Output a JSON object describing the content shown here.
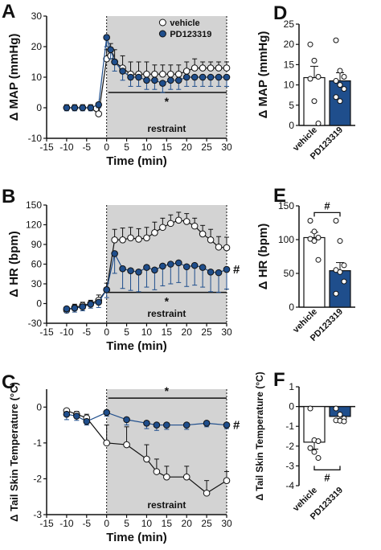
{
  "colors": {
    "vehicle_fill": "#ffffff",
    "pd_fill": "#1f4e8c",
    "axis": "#111111",
    "shade": "#d3d3d3",
    "edge": "#111111"
  },
  "chart_data": [
    {
      "panel": "A",
      "type": "line",
      "xlabel": "Time (min)",
      "ylabel": "Δ MAP (mmHg)",
      "xlim": [
        -15,
        30
      ],
      "ylim": [
        -10,
        30
      ],
      "xticks": [
        -15,
        -10,
        -5,
        0,
        5,
        10,
        15,
        20,
        25,
        30
      ],
      "yticks": [
        -10,
        0,
        10,
        20,
        30
      ],
      "shaded_region": [
        0,
        30
      ],
      "shaded_label": "restraint",
      "significance": {
        "symbol": "*",
        "y": 5
      },
      "end_marker": "",
      "legend": {
        "position": "top-right"
      },
      "series": [
        {
          "name": "vehicle",
          "marker": "open",
          "x": [
            -10,
            -8,
            -6,
            -4,
            -2,
            0,
            1,
            2,
            4,
            6,
            8,
            10,
            12,
            14,
            16,
            18,
            20,
            22,
            24,
            26,
            28,
            30
          ],
          "y": [
            0,
            0,
            0,
            0,
            -2,
            16,
            17,
            15,
            13,
            11,
            11,
            11,
            11,
            11,
            11,
            11,
            12,
            13,
            13,
            13,
            13,
            13
          ],
          "err": [
            1,
            1,
            1,
            1,
            2,
            3,
            4,
            4,
            4,
            4,
            4,
            4,
            3,
            3,
            3,
            3,
            3,
            3,
            2,
            2,
            2,
            2
          ]
        },
        {
          "name": "PD123319",
          "marker": "filled",
          "x": [
            -10,
            -8,
            -6,
            -4,
            -2,
            0,
            1,
            2,
            4,
            6,
            8,
            10,
            12,
            14,
            16,
            18,
            20,
            22,
            24,
            26,
            28,
            30
          ],
          "y": [
            0,
            0,
            0,
            0,
            1,
            23,
            19,
            15,
            12,
            10,
            10,
            9,
            9,
            8,
            9,
            9,
            10,
            10,
            10,
            10,
            10,
            10
          ],
          "err": [
            1,
            1,
            1,
            1,
            1,
            3,
            3,
            3,
            3,
            3,
            3,
            3,
            3,
            3,
            3,
            3,
            3,
            3,
            3,
            3,
            3,
            3
          ]
        }
      ]
    },
    {
      "panel": "B",
      "type": "line",
      "xlabel": "Time (min)",
      "ylabel": "Δ HR (bpm)",
      "xlim": [
        -15,
        30
      ],
      "ylim": [
        -30,
        150
      ],
      "xticks": [
        -15,
        -10,
        -5,
        0,
        5,
        10,
        15,
        20,
        25,
        30
      ],
      "yticks": [
        -30,
        0,
        30,
        60,
        90,
        120,
        150
      ],
      "yticklabels": [
        "-30",
        "0",
        "30",
        "60",
        "90",
        "120",
        "150"
      ],
      "shaded_region": [
        0,
        30
      ],
      "shaded_label": "restraint",
      "significance": {
        "symbol": "*",
        "y": 17
      },
      "end_marker": "#",
      "series": [
        {
          "name": "vehicle",
          "marker": "open",
          "x": [
            -10,
            -8,
            -6,
            -4,
            -2,
            0,
            2,
            4,
            6,
            8,
            10,
            12,
            14,
            16,
            18,
            20,
            22,
            24,
            26,
            28,
            30
          ],
          "y": [
            -10,
            -6,
            -3,
            0,
            5,
            21,
            97,
            97,
            100,
            98,
            100,
            108,
            116,
            122,
            127,
            125,
            118,
            106,
            97,
            86,
            85
          ],
          "err": [
            5,
            5,
            5,
            5,
            8,
            10,
            16,
            18,
            16,
            16,
            16,
            16,
            14,
            13,
            12,
            12,
            12,
            13,
            16,
            16,
            16
          ]
        },
        {
          "name": "PD123319",
          "marker": "filled",
          "x": [
            -10,
            -8,
            -6,
            -4,
            -2,
            0,
            2,
            4,
            6,
            8,
            10,
            12,
            14,
            16,
            18,
            20,
            22,
            24,
            26,
            28,
            30
          ],
          "y": [
            -8,
            -7,
            -5,
            -1,
            2,
            21,
            76,
            53,
            50,
            48,
            55,
            51,
            57,
            60,
            62,
            56,
            58,
            55,
            48,
            47,
            52
          ],
          "err": [
            6,
            6,
            6,
            6,
            8,
            12,
            30,
            30,
            30,
            30,
            30,
            30,
            30,
            30,
            30,
            30,
            30,
            30,
            30,
            30,
            30
          ]
        }
      ]
    },
    {
      "panel": "C",
      "type": "line",
      "xlabel": "Time (min)",
      "ylabel": "Δ Tail Skin Temperature (°C)",
      "xlim": [
        -15,
        30
      ],
      "ylim": [
        -3,
        0.5
      ],
      "xticks": [
        -15,
        -10,
        -5,
        0,
        5,
        10,
        15,
        20,
        25,
        30
      ],
      "yticks": [
        -3,
        -2,
        -1,
        0
      ],
      "shaded_region": [
        0,
        30
      ],
      "shaded_label": "restraint",
      "significance": {
        "symbol": "*",
        "y": 0.25
      },
      "end_marker": "#",
      "series": [
        {
          "name": "vehicle",
          "marker": "open",
          "x": [
            -10,
            -7.5,
            -5,
            0,
            5,
            10,
            12.5,
            15,
            20,
            25,
            30
          ],
          "y": [
            -0.1,
            -0.2,
            -0.3,
            -1.0,
            -1.05,
            -1.45,
            -1.8,
            -1.95,
            -1.95,
            -2.4,
            -2.05
          ],
          "err": [
            0.05,
            0.08,
            0.1,
            0.5,
            0.5,
            0.4,
            0.35,
            0.3,
            0.3,
            0.35,
            0.25
          ]
        },
        {
          "name": "PD123319",
          "marker": "filled",
          "x": [
            -10,
            -7.5,
            -5,
            0,
            5,
            10,
            12.5,
            15,
            20,
            25,
            30
          ],
          "y": [
            -0.2,
            -0.25,
            -0.4,
            -0.15,
            -0.35,
            -0.45,
            -0.5,
            -0.5,
            -0.5,
            -0.45,
            -0.5
          ],
          "err": [
            0.15,
            0.12,
            0.1,
            0.1,
            0.15,
            0.15,
            0.15,
            0.12,
            0.12,
            0.1,
            0.1
          ]
        }
      ]
    },
    {
      "panel": "D",
      "type": "bar",
      "ylabel": "Δ MAP (mmHg)",
      "ylim": [
        0,
        25
      ],
      "yticks": [
        0,
        5,
        10,
        15,
        20,
        25
      ],
      "categories": [
        "vehicle",
        "PD123319"
      ],
      "values": [
        11.8,
        11.0
      ],
      "err": [
        2.8,
        2.0
      ],
      "points": [
        [
          20,
          16,
          12,
          11.5,
          6,
          0.5
        ],
        [
          21,
          13.5,
          12,
          11,
          10,
          9,
          7,
          6
        ]
      ],
      "significance": null
    },
    {
      "panel": "E",
      "type": "bar",
      "ylabel": "Δ HR (bpm)",
      "ylim": [
        0,
        150
      ],
      "yticks": [
        0,
        50,
        100,
        150
      ],
      "categories": [
        "vehicle",
        "PD123319"
      ],
      "values": [
        103,
        54
      ],
      "err": [
        8,
        12
      ],
      "points": [
        [
          128,
          112,
          103,
          101,
          98,
          70
        ],
        [
          128,
          98,
          62,
          55,
          52,
          38,
          20
        ]
      ],
      "significance": "#"
    },
    {
      "panel": "F",
      "type": "bar",
      "ylabel": "Δ Tail Skin Temperature (°C)",
      "ylim": [
        -4,
        1
      ],
      "yticks": [
        -4,
        -3,
        -2,
        -1,
        0,
        1
      ],
      "categories": [
        "vehicle",
        "PD123319"
      ],
      "values": [
        -1.8,
        -0.5
      ],
      "err": [
        0.35,
        0.1
      ],
      "points": [
        [
          -0.1,
          -1.7,
          -1.75,
          -2.1,
          -2.3,
          -2.6
        ],
        [
          -0.1,
          -0.4,
          -0.6,
          -0.7,
          -0.72,
          -0.75
        ]
      ],
      "significance": "#"
    }
  ]
}
